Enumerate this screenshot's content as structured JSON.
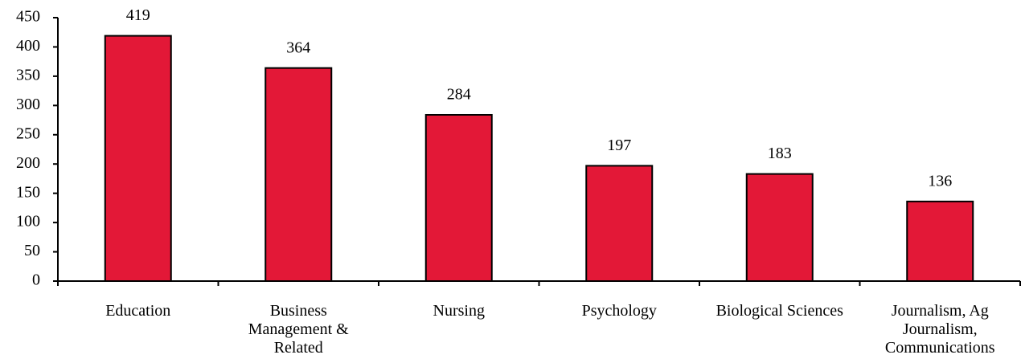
{
  "chart_data": {
    "type": "bar",
    "categories": [
      "Education",
      "Business Management & Related",
      "Nursing",
      "Psychology",
      "Biological Sciences",
      "Journalism, Ag Journalism, Communications"
    ],
    "values": [
      419,
      364,
      284,
      197,
      183,
      136
    ],
    "color": "#e31837",
    "ylim": [
      0,
      450
    ],
    "yticks": [
      0,
      50,
      100,
      150,
      200,
      250,
      300,
      350,
      400,
      450
    ]
  }
}
